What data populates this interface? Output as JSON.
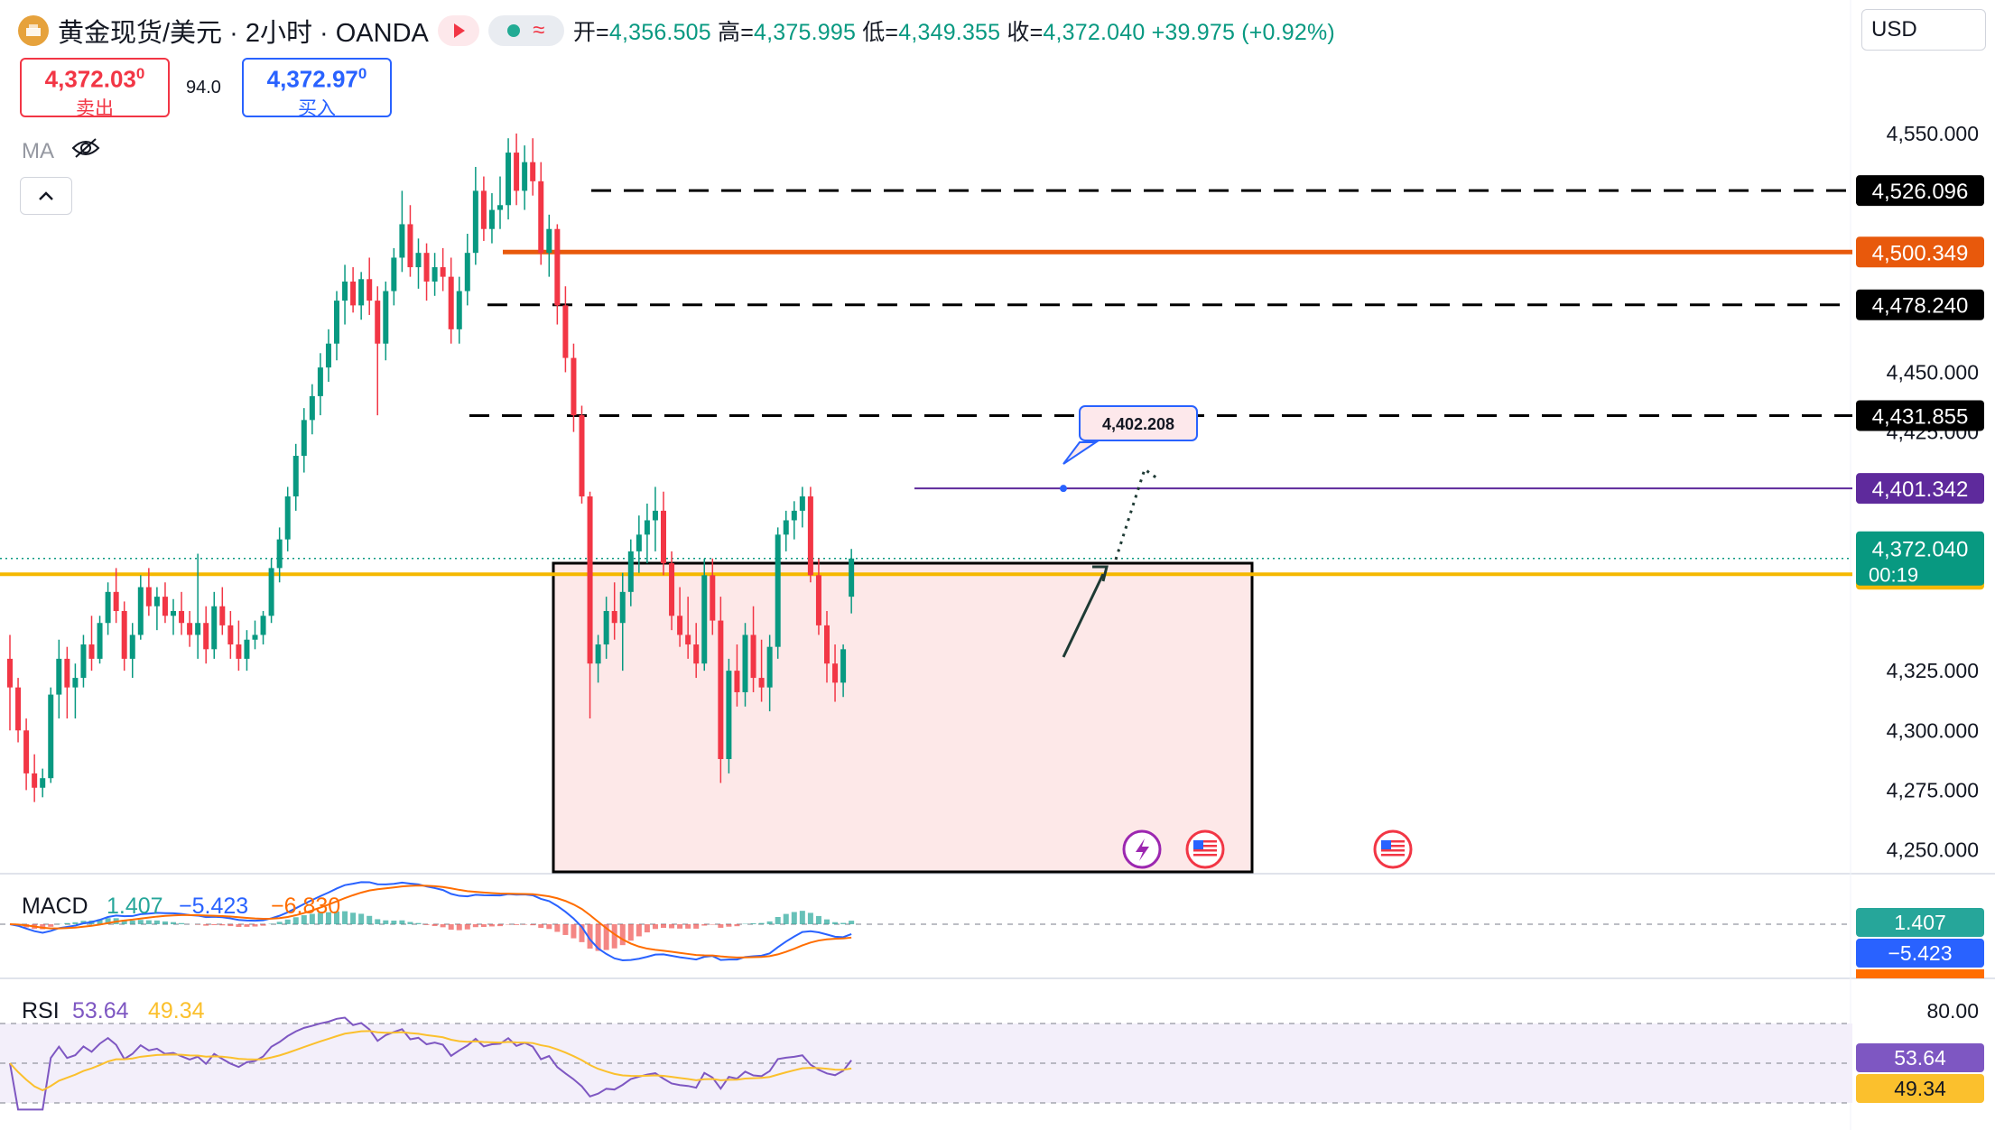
{
  "header": {
    "symbol": "黄金现货/美元 · 2小时 · OANDA",
    "ohlc": [
      {
        "k": "开=",
        "v": "4,356.505"
      },
      {
        "k": "高=",
        "v": "4,375.995"
      },
      {
        "k": "低=",
        "v": "4,349.355"
      },
      {
        "k": "收=",
        "v": "4,372.040"
      }
    ],
    "change": "+39.975 (+0.92%)",
    "wave_icon": "wave-icon",
    "status_color": "#22ab94"
  },
  "trade": {
    "sell_price": "4,372.03",
    "sell_price_sup": "0",
    "sell_label": "卖出",
    "spread": "94.0",
    "buy_price": "4,372.97",
    "buy_price_sup": "0",
    "buy_label": "买入"
  },
  "ma_label": "MA",
  "currency": "USD",
  "colors": {
    "up": "#089981",
    "down": "#f23645",
    "support": "#f5b800",
    "resistance": "#e8590c",
    "purple": "#5e2a9c",
    "zone_fill": "#fde8e8"
  },
  "price_axis": {
    "ticks": [
      "4,550.000",
      "4,450.000",
      "4,425.000",
      "4,325.000",
      "4,300.000",
      "4,275.000",
      "4,250.000"
    ]
  },
  "levels": [
    {
      "label": "4,526.096",
      "value": 4526.096,
      "style": "dashed",
      "color": "#000000"
    },
    {
      "label": "4,500.349",
      "value": 4500.349,
      "style": "solid",
      "color": "#e8590c"
    },
    {
      "label": "4,478.240",
      "value": 4478.24,
      "style": "dashed",
      "color": "#000000"
    },
    {
      "label": "4,431.855",
      "value": 4431.855,
      "style": "dashed",
      "color": "#000000"
    },
    {
      "label": "4,401.342",
      "value": 4401.342,
      "style": "thin",
      "color": "#5e2a9c"
    },
    {
      "label": "4,365.407",
      "value": 4365.407,
      "style": "solid-yellow",
      "color": "#f5b800"
    }
  ],
  "last_price": {
    "value": "4,372.040",
    "countdown": "00:19"
  },
  "callout": "4,402.208",
  "macd": {
    "label": "MACD",
    "v1": "1.407",
    "v2": "−5.423",
    "v3": "−6.830",
    "badge1": "1.407",
    "badge2": "−5.423"
  },
  "rsi": {
    "label": "RSI",
    "v1": "53.64",
    "v2": "49.34",
    "level": "80.00",
    "badge1": "53.64",
    "badge2": "49.34"
  },
  "chart_data": {
    "type": "candlestick",
    "title": "黄金现货/美元 · 2小时 · OANDA",
    "ylim": [
      4240,
      4570
    ],
    "candles": [
      [
        4330,
        4340,
        4300,
        4318
      ],
      [
        4318,
        4322,
        4295,
        4300
      ],
      [
        4300,
        4305,
        4275,
        4282
      ],
      [
        4282,
        4290,
        4270,
        4276
      ],
      [
        4276,
        4284,
        4272,
        4280
      ],
      [
        4280,
        4318,
        4278,
        4315
      ],
      [
        4315,
        4338,
        4305,
        4330
      ],
      [
        4330,
        4335,
        4305,
        4318
      ],
      [
        4318,
        4328,
        4305,
        4322
      ],
      [
        4322,
        4340,
        4318,
        4336
      ],
      [
        4336,
        4348,
        4325,
        4330
      ],
      [
        4330,
        4348,
        4328,
        4345
      ],
      [
        4345,
        4362,
        4340,
        4358
      ],
      [
        4358,
        4368,
        4345,
        4350
      ],
      [
        4350,
        4354,
        4325,
        4330
      ],
      [
        4330,
        4345,
        4322,
        4340
      ],
      [
        4340,
        4365,
        4338,
        4360
      ],
      [
        4360,
        4368,
        4348,
        4352
      ],
      [
        4352,
        4360,
        4342,
        4356
      ],
      [
        4356,
        4362,
        4345,
        4348
      ],
      [
        4348,
        4355,
        4340,
        4350
      ],
      [
        4350,
        4358,
        4340,
        4345
      ],
      [
        4345,
        4350,
        4335,
        4340
      ],
      [
        4340,
        4374,
        4330,
        4345
      ],
      [
        4345,
        4352,
        4328,
        4334
      ],
      [
        4334,
        4358,
        4330,
        4352
      ],
      [
        4352,
        4360,
        4340,
        4344
      ],
      [
        4344,
        4350,
        4330,
        4336
      ],
      [
        4336,
        4346,
        4325,
        4330
      ],
      [
        4330,
        4342,
        4325,
        4338
      ],
      [
        4338,
        4346,
        4334,
        4340
      ],
      [
        4340,
        4350,
        4336,
        4348
      ],
      [
        4348,
        4372,
        4345,
        4368
      ],
      [
        4368,
        4385,
        4362,
        4380
      ],
      [
        4380,
        4402,
        4375,
        4398
      ],
      [
        4398,
        4420,
        4392,
        4415
      ],
      [
        4415,
        4435,
        4408,
        4430
      ],
      [
        4430,
        4445,
        4424,
        4440
      ],
      [
        4440,
        4458,
        4432,
        4452
      ],
      [
        4452,
        4468,
        4446,
        4462
      ],
      [
        4462,
        4484,
        4455,
        4480
      ],
      [
        4480,
        4495,
        4470,
        4488
      ],
      [
        4488,
        4494,
        4475,
        4478
      ],
      [
        4478,
        4492,
        4472,
        4489
      ],
      [
        4489,
        4498,
        4474,
        4480
      ],
      [
        4480,
        4486,
        4432,
        4462
      ],
      [
        4462,
        4488,
        4455,
        4484
      ],
      [
        4484,
        4502,
        4478,
        4498
      ],
      [
        4498,
        4526,
        4492,
        4512
      ],
      [
        4512,
        4520,
        4490,
        4494
      ],
      [
        4494,
        4506,
        4485,
        4500
      ],
      [
        4500,
        4504,
        4480,
        4488
      ],
      [
        4488,
        4500,
        4482,
        4494
      ],
      [
        4494,
        4502,
        4484,
        4490
      ],
      [
        4490,
        4498,
        4462,
        4468
      ],
      [
        4468,
        4490,
        4462,
        4484
      ],
      [
        4484,
        4508,
        4478,
        4500
      ],
      [
        4500,
        4536,
        4495,
        4526
      ],
      [
        4526,
        4532,
        4505,
        4510
      ],
      [
        4510,
        4525,
        4504,
        4518
      ],
      [
        4518,
        4532,
        4510,
        4520
      ],
      [
        4520,
        4548,
        4514,
        4542
      ],
      [
        4542,
        4550,
        4520,
        4526
      ],
      [
        4526,
        4545,
        4518,
        4538
      ],
      [
        4538,
        4548,
        4524,
        4530
      ],
      [
        4530,
        4538,
        4495,
        4500
      ],
      [
        4500,
        4516,
        4490,
        4510
      ],
      [
        4510,
        4512,
        4470,
        4478
      ],
      [
        4478,
        4486,
        4450,
        4456
      ],
      [
        4456,
        4462,
        4425,
        4432
      ],
      [
        4432,
        4436,
        4395,
        4398
      ],
      [
        4398,
        4400,
        4305,
        4328
      ],
      [
        4328,
        4340,
        4320,
        4336
      ],
      [
        4336,
        4356,
        4330,
        4350
      ],
      [
        4350,
        4362,
        4338,
        4345
      ],
      [
        4345,
        4366,
        4325,
        4358
      ],
      [
        4358,
        4380,
        4352,
        4375
      ],
      [
        4375,
        4390,
        4366,
        4382
      ],
      [
        4382,
        4395,
        4370,
        4388
      ],
      [
        4388,
        4402,
        4375,
        4392
      ],
      [
        4392,
        4400,
        4365,
        4370
      ],
      [
        4370,
        4375,
        4342,
        4348
      ],
      [
        4348,
        4360,
        4335,
        4340
      ],
      [
        4340,
        4356,
        4330,
        4336
      ],
      [
        4336,
        4345,
        4322,
        4328
      ],
      [
        4328,
        4372,
        4325,
        4365
      ],
      [
        4365,
        4372,
        4340,
        4346
      ],
      [
        4346,
        4356,
        4278,
        4288
      ],
      [
        4288,
        4330,
        4282,
        4325
      ],
      [
        4325,
        4336,
        4310,
        4316
      ],
      [
        4316,
        4345,
        4310,
        4340
      ],
      [
        4340,
        4352,
        4316,
        4322
      ],
      [
        4322,
        4338,
        4312,
        4318
      ],
      [
        4318,
        4340,
        4308,
        4335
      ],
      [
        4335,
        4385,
        4330,
        4382
      ],
      [
        4382,
        4392,
        4375,
        4388
      ],
      [
        4388,
        4396,
        4380,
        4392
      ],
      [
        4392,
        4402,
        4385,
        4398
      ],
      [
        4398,
        4402,
        4362,
        4365
      ],
      [
        4365,
        4372,
        4340,
        4344
      ],
      [
        4344,
        4350,
        4320,
        4328
      ],
      [
        4328,
        4336,
        4312,
        4320
      ],
      [
        4320,
        4336,
        4314,
        4334
      ],
      [
        4356,
        4376,
        4349,
        4372
      ]
    ],
    "macd": {
      "macd": 1.407,
      "signal": -5.423,
      "histogram": -6.83
    },
    "rsi": {
      "value": 53.64,
      "ma": 49.34,
      "upper": 80
    }
  }
}
